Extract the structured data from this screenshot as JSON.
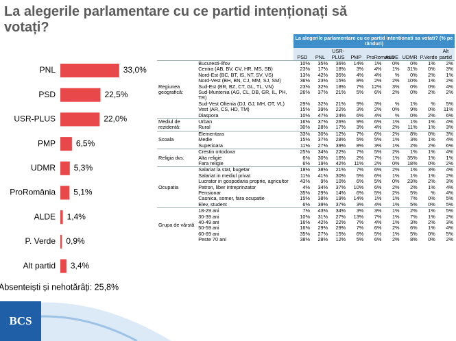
{
  "title": "La alegerile parlamentare cu ce partid intenționați să votați?",
  "chart_data": {
    "type": "bar",
    "categories": [
      "PNL",
      "PSD",
      "USR-PLUS",
      "PMP",
      "UDMR",
      "ProRomânia",
      "ALDE",
      "P. Verde",
      "Alt partid"
    ],
    "values": [
      33.0,
      22.5,
      22.0,
      6.5,
      5.3,
      5.1,
      1.4,
      0.9,
      3.4
    ],
    "value_labels": [
      "33,0%",
      "22,5%",
      "22,0%",
      "6,5%",
      "5,3%",
      "5,1%",
      "1,4%",
      "0,9%",
      "3,4%"
    ],
    "color": "#e8484a",
    "note": "Absenteiști și nehotărâți: 25,8%"
  },
  "logo": "BCS",
  "table": {
    "title": "La alegerile parlamentare cu ce partid intentionati sa votati? (% pe rânduri)",
    "columns": [
      "PSD",
      "PNL",
      "USR-PLUS",
      "PMP",
      "ProRomania",
      "ALDE",
      "UDMR",
      "P.Verde",
      "Alt partid"
    ],
    "groups": [
      {
        "label": "Regiunea geografică:",
        "rows": [
          {
            "label": "Bucuresti-Ilfov",
            "cells": [
              "10%",
              "35%",
              "36%",
              "14%",
              "1%",
              "0%",
              "0%",
              "1%",
              "2%"
            ]
          },
          {
            "label": "Centra (AB, BV, CV, HR, MS, SB)",
            "cells": [
              "23%",
              "17%",
              "18%",
              "3%",
              "4%",
              "1%",
              "31%",
              "0%",
              "3%"
            ]
          },
          {
            "label": "Nord-Est (BC, BT, IS, NT, SV, VS)",
            "cells": [
              "13%",
              "42%",
              "35%",
              "4%",
              "4%",
              "%",
              "0%",
              "2%",
              "1%"
            ]
          },
          {
            "label": "Nord-Vest (BH, BN, CJ, MM, SJ, SM)",
            "cells": [
              "36%",
              "23%",
              "15%",
              "8%",
              "2%",
              "2%",
              "10%",
              "1%",
              "2%"
            ]
          },
          {
            "label": "Sud-Est (BR, BZ, CT, GL, TL, VN)",
            "cells": [
              "23%",
              "32%",
              "18%",
              "7%",
              "12%",
              "3%",
              "0%",
              "0%",
              "4%"
            ]
          },
          {
            "label": "Sud-Muntenia (AG, CL, DB, GR, IL, PH, TR)",
            "cells": [
              "26%",
              "37%",
              "21%",
              "5%",
              "6%",
              "2%",
              "0%",
              "2%",
              "2%"
            ]
          },
          {
            "label": "Sud-Vest Oltenia (DJ, GJ, MH, OT, VL)",
            "cells": [
              "29%",
              "32%",
              "21%",
              "9%",
              "3%",
              "%",
              "1%",
              "%",
              "5%"
            ]
          },
          {
            "label": "Vest (AR, CS, HD, TM)",
            "cells": [
              "15%",
              "39%",
              "22%",
              "3%",
              "2%",
              "0%",
              "9%",
              "0%",
              "11%"
            ]
          },
          {
            "label": "Diaspora",
            "cells": [
              "10%",
              "47%",
              "24%",
              "6%",
              "4%",
              "%",
              "0%",
              "2%",
              "6%"
            ]
          }
        ]
      },
      {
        "label": "Mediul de rezidentă:",
        "rows": [
          {
            "label": "Urban",
            "cells": [
              "16%",
              "37%",
              "26%",
              "9%",
              "6%",
              "1%",
              "1%",
              "1%",
              "4%"
            ]
          },
          {
            "label": "Rural",
            "cells": [
              "30%",
              "28%",
              "17%",
              "3%",
              "4%",
              "2%",
              "11%",
              "1%",
              "3%"
            ]
          }
        ]
      },
      {
        "label": "Scoala",
        "rows": [
          {
            "label": "Elementara",
            "cells": [
              "33%",
              "30%",
              "12%",
              "7%",
              "6%",
              "2%",
              "8%",
              "0%",
              "3%"
            ]
          },
          {
            "label": "Medie",
            "cells": [
              "15%",
              "37%",
              "28%",
              "5%",
              "5%",
              "1%",
              "3%",
              "1%",
              "4%"
            ]
          },
          {
            "label": "Superioara",
            "cells": [
              "11%",
              "27%",
              "39%",
              "8%",
              "3%",
              "1%",
              "2%",
              "2%",
              "6%"
            ]
          }
        ]
      },
      {
        "label": "Religia dvs.",
        "rows": [
          {
            "label": "Crestin ortodoxa",
            "cells": [
              "25%",
              "34%",
              "22%",
              "7%",
              "5%",
              "2%",
              "1%",
              "1%",
              "4%"
            ]
          },
          {
            "label": "Alta religie",
            "cells": [
              "6%",
              "30%",
              "16%",
              "2%",
              "7%",
              "1%",
              "35%",
              "1%",
              "1%"
            ]
          },
          {
            "label": "Fara religie",
            "cells": [
              "6%",
              "19%",
              "42%",
              "11%",
              "2%",
              "0%",
              "18%",
              "0%",
              "2%"
            ]
          }
        ]
      },
      {
        "label": "Ocupatia",
        "rows": [
          {
            "label": "Salariat la stat, bugetar",
            "cells": [
              "18%",
              "38%",
              "21%",
              "7%",
              "6%",
              "2%",
              "1%",
              "3%",
              "4%"
            ]
          },
          {
            "label": "Salariat in mediul privat",
            "cells": [
              "11%",
              "41%",
              "30%",
              "5%",
              "6%",
              "1%",
              "1%",
              "1%",
              "2%"
            ]
          },
          {
            "label": "Lucrator in gospodaria proprie, agricultor",
            "cells": [
              "43%",
              "9%",
              "10%",
              "6%",
              "5%",
              "0%",
              "23%",
              "2%",
              "3%"
            ]
          },
          {
            "label": "Patron, liber intreprinzator",
            "cells": [
              "4%",
              "34%",
              "37%",
              "10%",
              "6%",
              "2%",
              "2%",
              "1%",
              "4%"
            ]
          },
          {
            "label": "Pensionar",
            "cells": [
              "35%",
              "29%",
              "14%",
              "6%",
              "5%",
              "2%",
              "5%",
              "%",
              "4%"
            ]
          },
          {
            "label": "Casnica, somer, fara ocupatie",
            "cells": [
              "15%",
              "38%",
              "19%",
              "14%",
              "1%",
              "1%",
              "7%",
              "0%",
              "5%"
            ]
          },
          {
            "label": "Elev, student",
            "cells": [
              "6%",
              "39%",
              "37%",
              "3%",
              "4%",
              "1%",
              "5%",
              "0%",
              "5%"
            ]
          }
        ]
      },
      {
        "label": "Grupa de vârstă",
        "rows": [
          {
            "label": "18-29 ani",
            "cells": [
              "7%",
              "43%",
              "34%",
              "3%",
              "3%",
              "1%",
              "2%",
              "1%",
              "5%"
            ]
          },
          {
            "label": "30-39 ani",
            "cells": [
              "10%",
              "31%",
              "27%",
              "13%",
              "7%",
              "1%",
              "7%",
              "1%",
              "2%"
            ]
          },
          {
            "label": "40-49 ani",
            "cells": [
              "16%",
              "42%",
              "22%",
              "7%",
              "4%",
              "1%",
              "3%",
              "2%",
              "3%"
            ]
          },
          {
            "label": "50-59 ani",
            "cells": [
              "16%",
              "29%",
              "29%",
              "7%",
              "6%",
              "2%",
              "6%",
              "1%",
              "4%"
            ]
          },
          {
            "label": "60-69 ani",
            "cells": [
              "35%",
              "27%",
              "15%",
              "6%",
              "5%",
              "1%",
              "5%",
              "0%",
              "5%"
            ]
          },
          {
            "label": "Peste 70 ani",
            "cells": [
              "38%",
              "28%",
              "12%",
              "5%",
              "6%",
              "2%",
              "8%",
              "0%",
              "2%"
            ]
          }
        ]
      }
    ]
  }
}
